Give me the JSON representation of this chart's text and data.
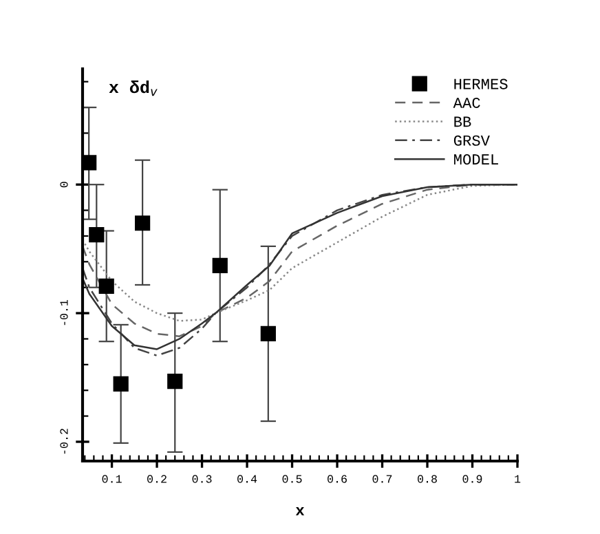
{
  "chart_data": {
    "type": "scatter",
    "xlabel": "x",
    "ylabel": "x δd$_{v}$",
    "xlim": [
      0.035,
      1
    ],
    "ylim": [
      -0.215,
      0.09
    ],
    "xticks": [
      0.1,
      0.2,
      0.3,
      0.4,
      0.5,
      0.6,
      0.7,
      0.8,
      0.9,
      1,
      {
        "value": 0.04,
        "label": null
      },
      {
        "value": 0.06,
        "label": null
      },
      {
        "value": 0.08,
        "label": null
      },
      {
        "value": 0.12,
        "label": null
      },
      {
        "value": 0.14,
        "label": null
      },
      {
        "value": 0.16,
        "label": null
      },
      {
        "value": 0.18,
        "label": null
      },
      {
        "value": 0.22,
        "label": null
      },
      {
        "value": 0.24,
        "label": null
      },
      {
        "value": 0.26,
        "label": null
      },
      {
        "value": 0.28,
        "label": null
      },
      {
        "value": 0.32,
        "label": null
      },
      {
        "value": 0.34,
        "label": null
      },
      {
        "value": 0.36,
        "label": null
      },
      {
        "value": 0.38,
        "label": null
      },
      {
        "value": 0.42,
        "label": null
      },
      {
        "value": 0.44,
        "label": null
      },
      {
        "value": 0.46,
        "label": null
      },
      {
        "value": 0.48,
        "label": null
      },
      {
        "value": 0.52,
        "label": null
      },
      {
        "value": 0.54,
        "label": null
      },
      {
        "value": 0.56,
        "label": null
      },
      {
        "value": 0.58,
        "label": null
      },
      {
        "value": 0.62,
        "label": null
      },
      {
        "value": 0.64,
        "label": null
      },
      {
        "value": 0.66,
        "label": null
      },
      {
        "value": 0.68,
        "label": null
      },
      {
        "value": 0.72,
        "label": null
      },
      {
        "value": 0.74,
        "label": null
      },
      {
        "value": 0.76,
        "label": null
      },
      {
        "value": 0.78,
        "label": null
      },
      {
        "value": 0.82,
        "label": null
      },
      {
        "value": 0.84,
        "label": null
      },
      {
        "value": 0.86,
        "label": null
      },
      {
        "value": 0.88,
        "label": null
      },
      {
        "value": 0.92,
        "label": null
      },
      {
        "value": 0.94,
        "label": null
      },
      {
        "value": 0.96,
        "label": null
      },
      {
        "value": 0.98,
        "label": null
      }
    ],
    "yticks": [
      0,
      {
        "value": -0.1,
        "label": "-0.1"
      },
      {
        "value": -0.2,
        "label": "-0.2"
      },
      {
        "value": 0.08,
        "label": null
      },
      {
        "value": 0.06,
        "label": null
      },
      {
        "value": 0.04,
        "label": null
      },
      {
        "value": 0.02,
        "label": null
      },
      {
        "value": -0.02,
        "label": null
      },
      {
        "value": -0.04,
        "label": null
      },
      {
        "value": -0.06,
        "label": null
      },
      {
        "value": -0.08,
        "label": null
      },
      {
        "value": -0.12,
        "label": null
      },
      {
        "value": -0.14,
        "label": null
      },
      {
        "value": -0.16,
        "label": null
      },
      {
        "value": -0.18,
        "label": null
      }
    ],
    "grid": false,
    "legend": "top right",
    "series": [
      {
        "name": "HERMES",
        "marker": "square",
        "color": "#000000",
        "x": [
          0.049,
          0.066,
          0.088,
          0.12,
          0.168,
          0.24,
          0.34,
          0.447
        ],
        "values": [
          0.017,
          -0.039,
          -0.079,
          -0.155,
          -0.03,
          -0.153,
          -0.063,
          -0.116
        ],
        "errors": [
          [
            -0.027,
            0.06
          ],
          [
            -0.08,
            0.0
          ],
          [
            -0.122,
            -0.036
          ],
          [
            -0.201,
            -0.109
          ],
          [
            -0.078,
            0.019
          ],
          [
            -0.208,
            -0.1
          ],
          [
            -0.122,
            -0.004
          ],
          [
            -0.184,
            -0.048
          ]
        ]
      },
      {
        "name": "AAC",
        "type": "line",
        "line_style": "dashed",
        "color": "#666666",
        "x": [
          0.035,
          0.05,
          0.1,
          0.15,
          0.2,
          0.25,
          0.3,
          0.33,
          0.4,
          0.45,
          0.5,
          0.6,
          0.7,
          0.8,
          0.9,
          1
        ],
        "values": [
          -0.048,
          -0.062,
          -0.093,
          -0.108,
          -0.116,
          -0.118,
          -0.11,
          -0.1,
          -0.088,
          -0.075,
          -0.052,
          -0.032,
          -0.015,
          -0.004,
          0,
          0
        ]
      },
      {
        "name": "BB",
        "type": "line",
        "line_style": "dotted",
        "color": "#888888",
        "x": [
          0.035,
          0.05,
          0.1,
          0.15,
          0.2,
          0.25,
          0.3,
          0.33,
          0.4,
          0.45,
          0.5,
          0.6,
          0.7,
          0.8,
          0.9,
          1
        ],
        "values": [
          -0.043,
          -0.052,
          -0.075,
          -0.091,
          -0.1,
          -0.106,
          -0.105,
          -0.1,
          -0.09,
          -0.082,
          -0.065,
          -0.045,
          -0.025,
          -0.008,
          -0.001,
          0
        ]
      },
      {
        "name": "GRSV",
        "type": "line",
        "line_style": "dashdot",
        "color": "#444444",
        "x": [
          0.035,
          0.05,
          0.1,
          0.15,
          0.2,
          0.25,
          0.3,
          0.33,
          0.4,
          0.45,
          0.5,
          0.6,
          0.7,
          0.8,
          0.9,
          1
        ],
        "values": [
          -0.065,
          -0.08,
          -0.108,
          -0.127,
          -0.133,
          -0.127,
          -0.112,
          -0.1,
          -0.08,
          -0.062,
          -0.04,
          -0.02,
          -0.008,
          -0.002,
          0,
          0
        ]
      },
      {
        "name": "MODEL",
        "type": "line",
        "line_style": "solid",
        "color": "#333333",
        "x": [
          0.035,
          0.05,
          0.1,
          0.15,
          0.2,
          0.25,
          0.3,
          0.33,
          0.4,
          0.45,
          0.5,
          0.6,
          0.7,
          0.8,
          0.9,
          1
        ],
        "values": [
          -0.073,
          -0.085,
          -0.11,
          -0.125,
          -0.128,
          -0.12,
          -0.108,
          -0.1,
          -0.078,
          -0.063,
          -0.038,
          -0.022,
          -0.009,
          -0.002,
          0,
          0
        ]
      }
    ]
  }
}
